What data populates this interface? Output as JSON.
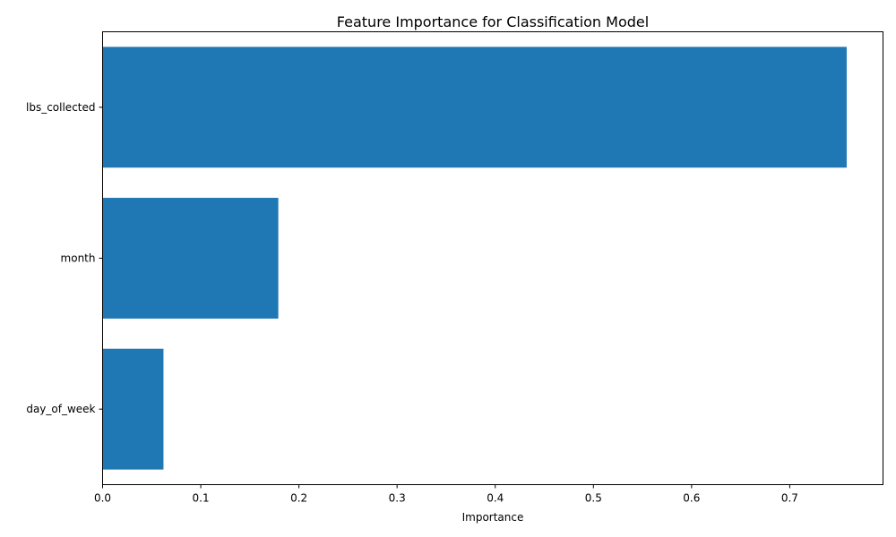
{
  "chart_data": {
    "type": "bar",
    "orientation": "horizontal",
    "title": "Feature Importance for Classification Model",
    "xlabel": "Importance",
    "ylabel": "",
    "categories": [
      "lbs_collected",
      "month",
      "day_of_week"
    ],
    "values": [
      0.758,
      0.179,
      0.062
    ],
    "xlim": [
      0,
      0.795
    ],
    "xticks": [
      "0.0",
      "0.1",
      "0.2",
      "0.3",
      "0.4",
      "0.5",
      "0.6",
      "0.7"
    ],
    "grid": false,
    "legend": "none",
    "bar_color": "#1f77b4"
  }
}
